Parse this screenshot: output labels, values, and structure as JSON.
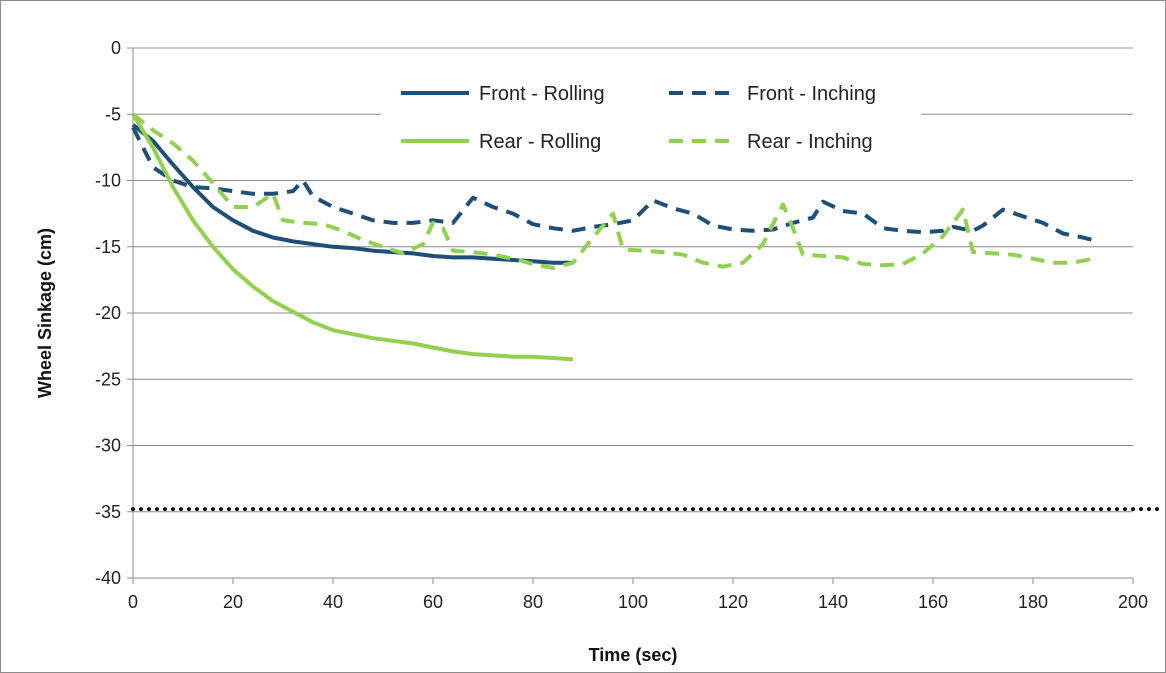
{
  "chart_data": {
    "type": "line",
    "title": "",
    "xlabel": "Time (sec)",
    "ylabel": "Wheel Sinkage (cm)",
    "xlim": [
      0,
      200
    ],
    "ylim": [
      -40,
      0
    ],
    "xticks": [
      0,
      20,
      40,
      60,
      80,
      100,
      120,
      140,
      160,
      180,
      200
    ],
    "yticks": [
      0,
      -5,
      -10,
      -15,
      -20,
      -25,
      -30,
      -35,
      -40
    ],
    "grid": "horizontal",
    "legend_position": "top-center",
    "reference_line": {
      "y": -34.8,
      "style": "dotted",
      "color": "#111111"
    },
    "series": [
      {
        "name": "Front - Rolling",
        "color": "#1f4e79",
        "dash": "solid",
        "points": [
          [
            0,
            -5.8
          ],
          [
            4,
            -7
          ],
          [
            8,
            -8.8
          ],
          [
            12,
            -10.5
          ],
          [
            16,
            -12
          ],
          [
            20,
            -13
          ],
          [
            24,
            -13.8
          ],
          [
            28,
            -14.3
          ],
          [
            32,
            -14.6
          ],
          [
            36,
            -14.8
          ],
          [
            40,
            -15
          ],
          [
            44,
            -15.1
          ],
          [
            48,
            -15.3
          ],
          [
            52,
            -15.4
          ],
          [
            56,
            -15.5
          ],
          [
            60,
            -15.7
          ],
          [
            64,
            -15.8
          ],
          [
            68,
            -15.8
          ],
          [
            72,
            -15.9
          ],
          [
            76,
            -16
          ],
          [
            80,
            -16.1
          ],
          [
            84,
            -16.2
          ],
          [
            88,
            -16.2
          ]
        ]
      },
      {
        "name": "Front - Inching",
        "color": "#1f4e79",
        "dash": "dashed",
        "points": [
          [
            0,
            -6
          ],
          [
            4,
            -9
          ],
          [
            8,
            -10
          ],
          [
            12,
            -10.5
          ],
          [
            16,
            -10.6
          ],
          [
            20,
            -10.8
          ],
          [
            24,
            -11
          ],
          [
            28,
            -11
          ],
          [
            32,
            -10.8
          ],
          [
            34,
            -10
          ],
          [
            36,
            -11.2
          ],
          [
            40,
            -12
          ],
          [
            44,
            -12.5
          ],
          [
            48,
            -13
          ],
          [
            52,
            -13.2
          ],
          [
            56,
            -13.2
          ],
          [
            60,
            -13
          ],
          [
            64,
            -13.2
          ],
          [
            68,
            -11.3
          ],
          [
            72,
            -12
          ],
          [
            76,
            -12.5
          ],
          [
            80,
            -13.3
          ],
          [
            84,
            -13.6
          ],
          [
            88,
            -13.8
          ],
          [
            92,
            -13.5
          ],
          [
            96,
            -13.3
          ],
          [
            100,
            -13
          ],
          [
            104,
            -11.5
          ],
          [
            108,
            -12.1
          ],
          [
            112,
            -12.5
          ],
          [
            116,
            -13.4
          ],
          [
            120,
            -13.7
          ],
          [
            124,
            -13.8
          ],
          [
            128,
            -13.7
          ],
          [
            132,
            -13.2
          ],
          [
            136,
            -12.8
          ],
          [
            138,
            -11.6
          ],
          [
            142,
            -12.3
          ],
          [
            146,
            -12.5
          ],
          [
            150,
            -13.6
          ],
          [
            154,
            -13.8
          ],
          [
            158,
            -13.9
          ],
          [
            162,
            -13.8
          ],
          [
            164,
            -13.5
          ],
          [
            168,
            -13.8
          ],
          [
            170,
            -13.4
          ],
          [
            174,
            -12.2
          ],
          [
            178,
            -12.7
          ],
          [
            182,
            -13.2
          ],
          [
            186,
            -14
          ],
          [
            190,
            -14.3
          ],
          [
            192,
            -14.5
          ]
        ]
      },
      {
        "name": "Rear - Rolling",
        "color": "#92d050",
        "dash": "solid",
        "points": [
          [
            0,
            -5
          ],
          [
            4,
            -7.5
          ],
          [
            8,
            -10.5
          ],
          [
            12,
            -13
          ],
          [
            16,
            -15
          ],
          [
            20,
            -16.7
          ],
          [
            24,
            -18
          ],
          [
            28,
            -19.1
          ],
          [
            32,
            -19.9
          ],
          [
            36,
            -20.7
          ],
          [
            40,
            -21.3
          ],
          [
            44,
            -21.6
          ],
          [
            48,
            -21.9
          ],
          [
            52,
            -22.1
          ],
          [
            56,
            -22.3
          ],
          [
            60,
            -22.6
          ],
          [
            64,
            -22.9
          ],
          [
            68,
            -23.1
          ],
          [
            72,
            -23.2
          ],
          [
            76,
            -23.3
          ],
          [
            80,
            -23.3
          ],
          [
            84,
            -23.4
          ],
          [
            88,
            -23.5
          ]
        ]
      },
      {
        "name": "Rear - Inching",
        "color": "#92d050",
        "dash": "dashed",
        "points": [
          [
            0,
            -5
          ],
          [
            4,
            -6.2
          ],
          [
            8,
            -7.2
          ],
          [
            12,
            -8.5
          ],
          [
            16,
            -10.2
          ],
          [
            20,
            -12
          ],
          [
            24,
            -12
          ],
          [
            28,
            -11
          ],
          [
            30,
            -13
          ],
          [
            34,
            -13.2
          ],
          [
            38,
            -13.3
          ],
          [
            42,
            -13.8
          ],
          [
            46,
            -14.5
          ],
          [
            50,
            -15
          ],
          [
            54,
            -15.5
          ],
          [
            58,
            -14.8
          ],
          [
            60,
            -13.2
          ],
          [
            62,
            -13.6
          ],
          [
            64,
            -15.3
          ],
          [
            68,
            -15.4
          ],
          [
            72,
            -15.6
          ],
          [
            76,
            -15.9
          ],
          [
            80,
            -16.3
          ],
          [
            84,
            -16.6
          ],
          [
            88,
            -16.2
          ],
          [
            92,
            -14.3
          ],
          [
            96,
            -12.5
          ],
          [
            98,
            -15.2
          ],
          [
            102,
            -15.3
          ],
          [
            106,
            -15.4
          ],
          [
            110,
            -15.6
          ],
          [
            114,
            -16.2
          ],
          [
            118,
            -16.5
          ],
          [
            122,
            -16.2
          ],
          [
            126,
            -14.8
          ],
          [
            130,
            -11.8
          ],
          [
            132,
            -13.6
          ],
          [
            134,
            -15.6
          ],
          [
            138,
            -15.7
          ],
          [
            142,
            -15.8
          ],
          [
            146,
            -16.3
          ],
          [
            150,
            -16.4
          ],
          [
            154,
            -16.3
          ],
          [
            158,
            -15.5
          ],
          [
            162,
            -14.2
          ],
          [
            166,
            -12.2
          ],
          [
            168,
            -15.4
          ],
          [
            172,
            -15.5
          ],
          [
            176,
            -15.6
          ],
          [
            180,
            -15.9
          ],
          [
            184,
            -16.2
          ],
          [
            188,
            -16.2
          ],
          [
            192,
            -15.9
          ]
        ]
      }
    ]
  }
}
